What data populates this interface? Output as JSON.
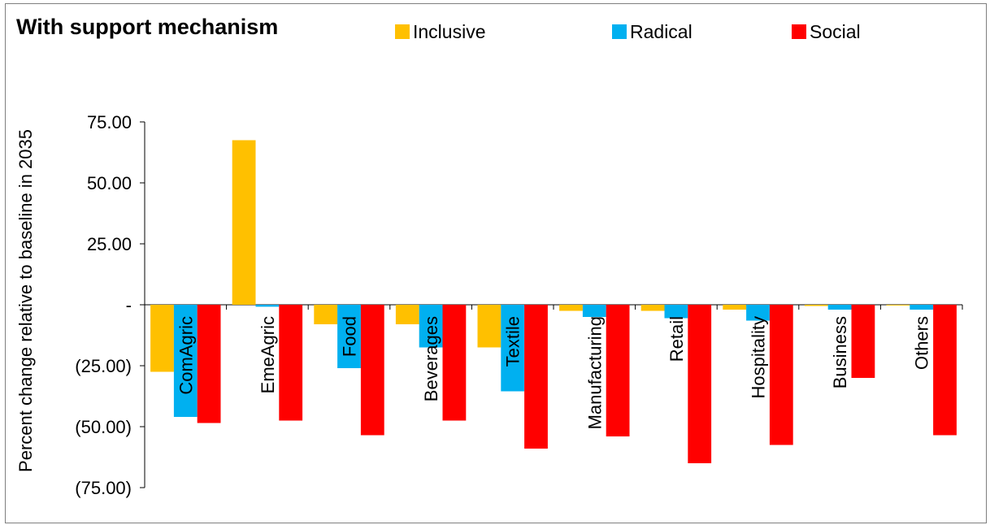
{
  "chart_data": {
    "type": "bar",
    "title": "With support mechanism",
    "ylabel": "Percent change relative to baseline in 2035",
    "xlabel": "",
    "ylim": [
      -75,
      75
    ],
    "yticks": [
      75,
      50,
      25,
      0,
      -25,
      -50,
      -75
    ],
    "ytick_labels": [
      "75.00",
      "50.00",
      "25.00",
      "-",
      "(25.00)",
      "(50.00)",
      "(75.00)"
    ],
    "categories": [
      "ComAgric",
      "EmeAgric",
      "Food",
      "Beverages",
      "Textile",
      "Manufacturing",
      "Retail",
      "Hospitality",
      "Business",
      "Others"
    ],
    "series": [
      {
        "name": "Inclusive",
        "color": "#FFC000",
        "values": [
          -27.5,
          67.5,
          -8.0,
          -8.0,
          -17.5,
          -2.5,
          -2.5,
          -2.0,
          -0.5,
          -0.3
        ]
      },
      {
        "name": "Radical",
        "color": "#00B0F0",
        "values": [
          -46.0,
          -0.8,
          -26.0,
          -17.5,
          -35.5,
          -5.0,
          -5.5,
          -6.5,
          -2.0,
          -2.0
        ]
      },
      {
        "name": "Social",
        "color": "#FF0000",
        "values": [
          -48.5,
          -47.5,
          -53.5,
          -47.5,
          -59.0,
          -54.0,
          -65.0,
          -57.5,
          -30.0,
          -53.5
        ]
      }
    ],
    "legend_position": "top",
    "grid": false
  }
}
